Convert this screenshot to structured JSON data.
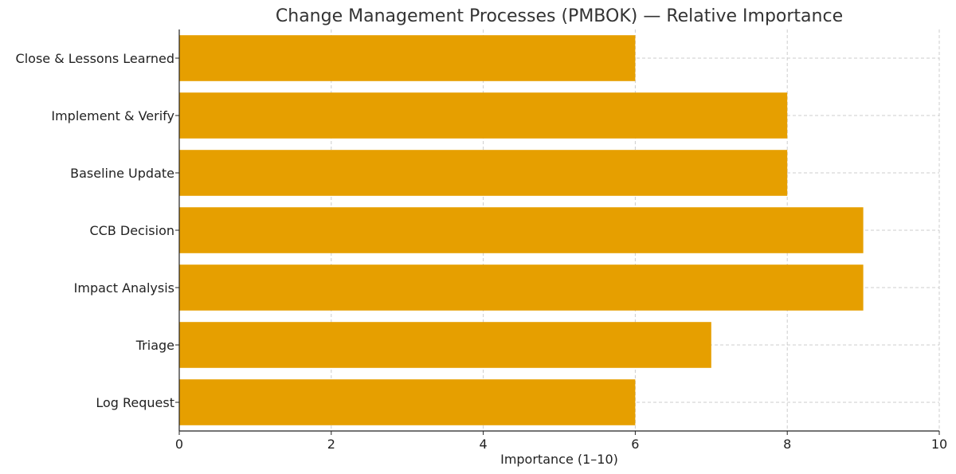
{
  "chart_data": {
    "type": "bar",
    "orientation": "horizontal",
    "title": "Change Management Processes (PMBOK) — Relative Importance",
    "xlabel": "Importance (1–10)",
    "ylabel": "",
    "categories": [
      "Log Request",
      "Triage",
      "Impact Analysis",
      "CCB Decision",
      "Baseline Update",
      "Implement & Verify",
      "Close & Lessons Learned"
    ],
    "values": [
      6,
      7,
      9,
      9,
      8,
      8,
      6
    ],
    "xlim": [
      0,
      10
    ],
    "xticks": [
      0,
      2,
      4,
      6,
      8,
      10
    ],
    "grid": true,
    "bar_color": "#E69F00",
    "grid_color": "#cccccc"
  }
}
